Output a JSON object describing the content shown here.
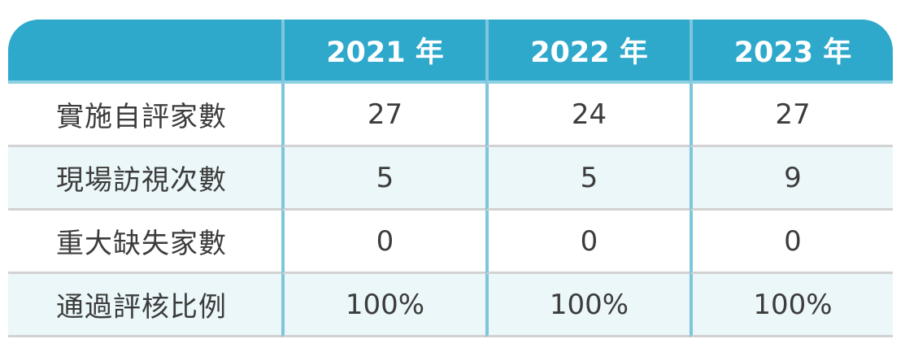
{
  "table": {
    "headers": [
      "",
      "2021 年",
      "2022 年",
      "2023 年"
    ],
    "rows": [
      {
        "label": "實施自評家數",
        "values": [
          "27",
          "24",
          "27"
        ]
      },
      {
        "label": "現場訪視次數",
        "values": [
          "5",
          "5",
          "9"
        ]
      },
      {
        "label": "重大缺失家數",
        "values": [
          "0",
          "0",
          "0"
        ]
      },
      {
        "label": "通過評核比例",
        "values": [
          "100%",
          "100%",
          "100%"
        ]
      }
    ],
    "colors": {
      "header_bg": "#2ea9cc",
      "header_text": "#ffffff",
      "column_divider": "#7dc6dc",
      "alt_row_bg": "#ebf7f9",
      "row_divider": "#d2d2d2",
      "body_text": "#3c3c3c"
    }
  }
}
